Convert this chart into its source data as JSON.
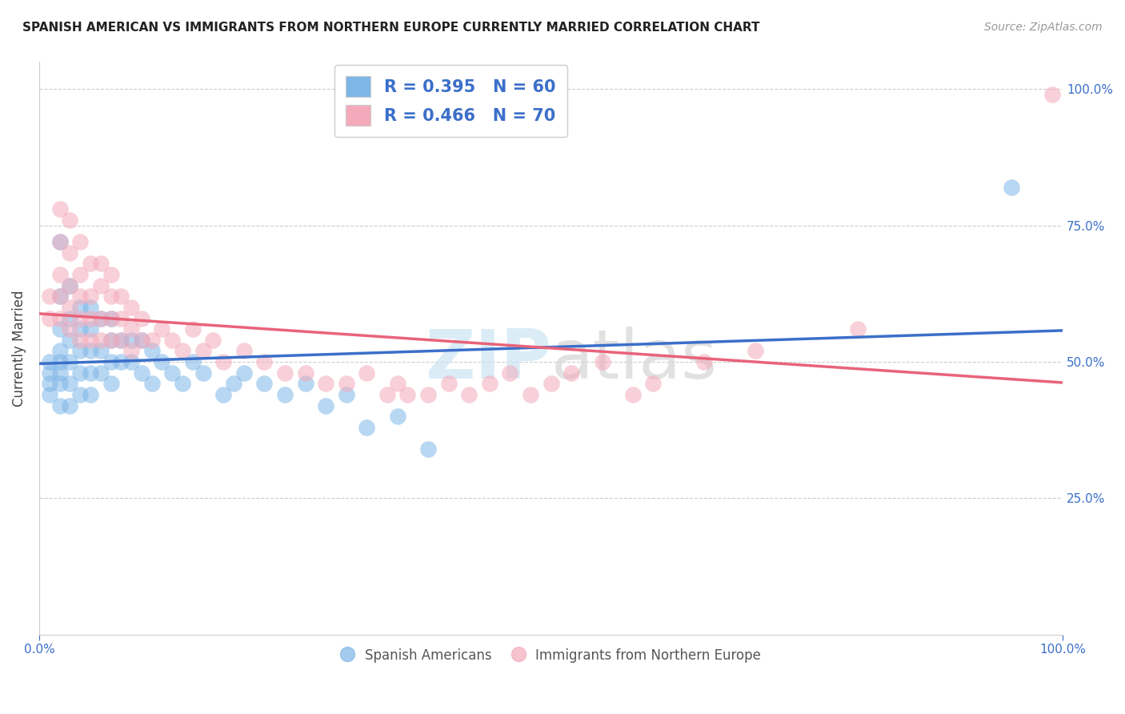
{
  "title": "SPANISH AMERICAN VS IMMIGRANTS FROM NORTHERN EUROPE CURRENTLY MARRIED CORRELATION CHART",
  "source": "Source: ZipAtlas.com",
  "ylabel": "Currently Married",
  "xlim": [
    0,
    1
  ],
  "ylim": [
    0,
    1.05
  ],
  "blue_R": 0.395,
  "blue_N": 60,
  "pink_R": 0.466,
  "pink_N": 70,
  "blue_color": "#7EB6E8",
  "pink_color": "#F4AABB",
  "blue_line_color": "#3B6FC9",
  "pink_line_color": "#E8637A",
  "tick_color": "#3B6FC9",
  "background_color": "#ffffff",
  "grid_color": "#cccccc",
  "blue_scatter_x": [
    0.01,
    0.01,
    0.01,
    0.01,
    0.02,
    0.02,
    0.02,
    0.02,
    0.02,
    0.02,
    0.02,
    0.02,
    0.03,
    0.03,
    0.03,
    0.03,
    0.03,
    0.03,
    0.04,
    0.04,
    0.04,
    0.04,
    0.04,
    0.05,
    0.05,
    0.05,
    0.05,
    0.05,
    0.06,
    0.06,
    0.06,
    0.07,
    0.07,
    0.07,
    0.07,
    0.08,
    0.08,
    0.09,
    0.09,
    0.1,
    0.1,
    0.11,
    0.11,
    0.12,
    0.13,
    0.14,
    0.15,
    0.16,
    0.18,
    0.19,
    0.2,
    0.22,
    0.24,
    0.26,
    0.28,
    0.3,
    0.32,
    0.35,
    0.38,
    0.95
  ],
  "blue_scatter_y": [
    0.5,
    0.48,
    0.46,
    0.44,
    0.72,
    0.62,
    0.56,
    0.52,
    0.5,
    0.48,
    0.46,
    0.42,
    0.64,
    0.58,
    0.54,
    0.5,
    0.46,
    0.42,
    0.6,
    0.56,
    0.52,
    0.48,
    0.44,
    0.6,
    0.56,
    0.52,
    0.48,
    0.44,
    0.58,
    0.52,
    0.48,
    0.58,
    0.54,
    0.5,
    0.46,
    0.54,
    0.5,
    0.54,
    0.5,
    0.54,
    0.48,
    0.52,
    0.46,
    0.5,
    0.48,
    0.46,
    0.5,
    0.48,
    0.44,
    0.46,
    0.48,
    0.46,
    0.44,
    0.46,
    0.42,
    0.44,
    0.38,
    0.4,
    0.34,
    0.82
  ],
  "pink_scatter_x": [
    0.01,
    0.01,
    0.02,
    0.02,
    0.02,
    0.02,
    0.02,
    0.03,
    0.03,
    0.03,
    0.03,
    0.03,
    0.04,
    0.04,
    0.04,
    0.04,
    0.04,
    0.05,
    0.05,
    0.05,
    0.05,
    0.06,
    0.06,
    0.06,
    0.06,
    0.07,
    0.07,
    0.07,
    0.07,
    0.08,
    0.08,
    0.08,
    0.09,
    0.09,
    0.09,
    0.1,
    0.1,
    0.11,
    0.12,
    0.13,
    0.14,
    0.15,
    0.16,
    0.17,
    0.18,
    0.2,
    0.22,
    0.24,
    0.26,
    0.28,
    0.3,
    0.32,
    0.34,
    0.35,
    0.36,
    0.38,
    0.4,
    0.42,
    0.44,
    0.46,
    0.48,
    0.5,
    0.52,
    0.55,
    0.58,
    0.6,
    0.65,
    0.7,
    0.8,
    0.99
  ],
  "pink_scatter_y": [
    0.62,
    0.58,
    0.78,
    0.72,
    0.66,
    0.62,
    0.58,
    0.76,
    0.7,
    0.64,
    0.6,
    0.56,
    0.72,
    0.66,
    0.62,
    0.58,
    0.54,
    0.68,
    0.62,
    0.58,
    0.54,
    0.68,
    0.64,
    0.58,
    0.54,
    0.66,
    0.62,
    0.58,
    0.54,
    0.62,
    0.58,
    0.54,
    0.6,
    0.56,
    0.52,
    0.58,
    0.54,
    0.54,
    0.56,
    0.54,
    0.52,
    0.56,
    0.52,
    0.54,
    0.5,
    0.52,
    0.5,
    0.48,
    0.48,
    0.46,
    0.46,
    0.48,
    0.44,
    0.46,
    0.44,
    0.44,
    0.46,
    0.44,
    0.46,
    0.48,
    0.44,
    0.46,
    0.48,
    0.5,
    0.44,
    0.46,
    0.5,
    0.52,
    0.56,
    0.99
  ]
}
